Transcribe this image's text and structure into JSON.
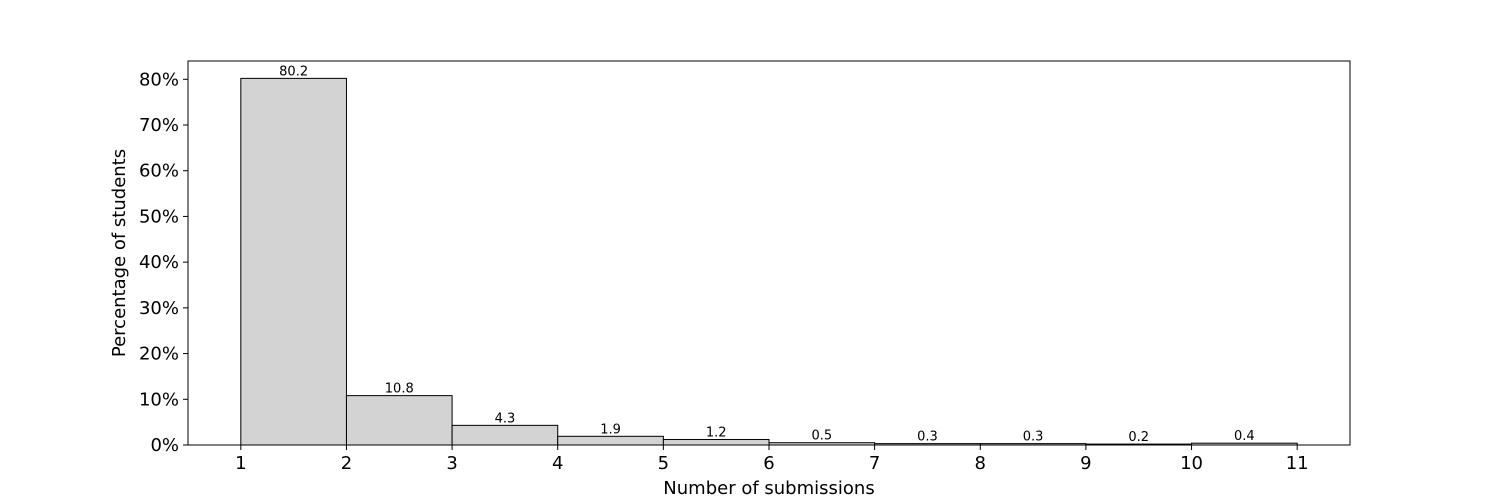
{
  "chart_data": {
    "type": "bar",
    "title": "",
    "xlabel": "Number of submissions",
    "ylabel": "Percentage of students",
    "x_ticks": [
      "1",
      "2",
      "3",
      "4",
      "5",
      "6",
      "7",
      "8",
      "9",
      "10",
      "11"
    ],
    "y_ticks": [
      "0%",
      "10%",
      "20%",
      "30%",
      "40%",
      "50%",
      "60%",
      "70%",
      "80%"
    ],
    "y_tick_values": [
      0,
      10,
      20,
      30,
      40,
      50,
      60,
      70,
      80
    ],
    "bins": [
      {
        "start": 1,
        "end": 2,
        "value": 80.2,
        "label": "80.2"
      },
      {
        "start": 2,
        "end": 3,
        "value": 10.8,
        "label": "10.8"
      },
      {
        "start": 3,
        "end": 4,
        "value": 4.3,
        "label": "4.3"
      },
      {
        "start": 4,
        "end": 5,
        "value": 1.9,
        "label": "1.9"
      },
      {
        "start": 5,
        "end": 6,
        "value": 1.2,
        "label": "1.2"
      },
      {
        "start": 6,
        "end": 7,
        "value": 0.5,
        "label": "0.5"
      },
      {
        "start": 7,
        "end": 8,
        "value": 0.3,
        "label": "0.3"
      },
      {
        "start": 8,
        "end": 9,
        "value": 0.3,
        "label": "0.3"
      },
      {
        "start": 9,
        "end": 10,
        "value": 0.2,
        "label": "0.2"
      },
      {
        "start": 10,
        "end": 11,
        "value": 0.4,
        "label": "0.4"
      }
    ],
    "xlim": [
      0.5,
      11.5
    ],
    "ylim": [
      0,
      84
    ],
    "bar_color": "#d3d3d3",
    "edge_color": "#000000",
    "grid": false,
    "legend": false
  }
}
